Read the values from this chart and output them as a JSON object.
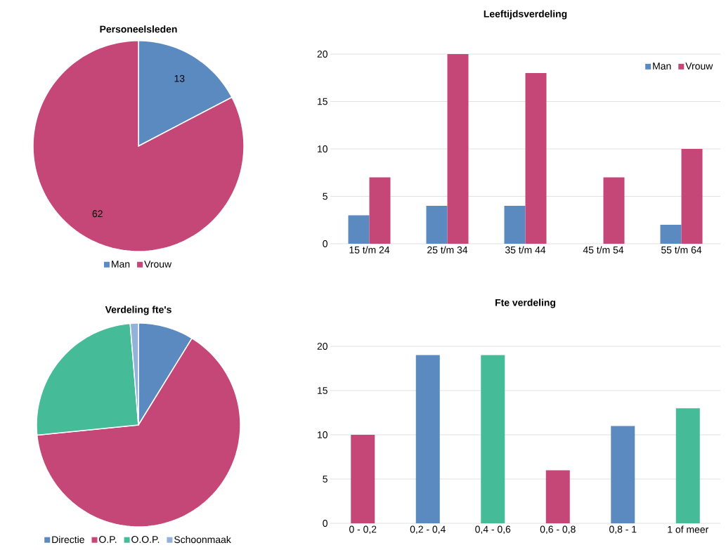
{
  "chart_data": [
    {
      "type": "pie",
      "title": "Personeelsleden",
      "categories": [
        "Man",
        "Vrouw"
      ],
      "values": [
        13,
        62
      ],
      "colors": [
        "#5b8ac1",
        "#c44778"
      ],
      "data_labels": true,
      "legend": "bottom"
    },
    {
      "type": "bar",
      "title": "Leeftijdsverdeling",
      "categories": [
        "15 t/m 24",
        "25 t/m 34",
        "35 t/m 44",
        "45 t/m 54",
        "55 t/m 64"
      ],
      "series": [
        {
          "name": "Man",
          "color": "#5b8ac1",
          "values": [
            3,
            4,
            4,
            0,
            2
          ]
        },
        {
          "name": "Vrouw",
          "color": "#c44778",
          "values": [
            7,
            20,
            18,
            7,
            10
          ]
        }
      ],
      "ylim": [
        0,
        20
      ],
      "yticks": [
        0,
        5,
        10,
        15,
        20
      ],
      "grid": "y",
      "legend": "top right"
    },
    {
      "type": "pie",
      "title": "Verdeling fte's",
      "categories": [
        "Directie",
        "O.P.",
        "O.O.P.",
        "Schoonmaak"
      ],
      "values": [
        8.8,
        64.6,
        25.3,
        1.3
      ],
      "colors": [
        "#5b8ac1",
        "#c44778",
        "#46bb98",
        "#92b2d8"
      ],
      "legend": "bottom"
    },
    {
      "type": "bar",
      "title": "Fte verdeling",
      "categories": [
        "0 - 0,2",
        "0,2 - 0,4",
        "0,4 - 0,6",
        "0,6 - 0,8",
        "0,8 - 1",
        "1 of meer"
      ],
      "values": [
        10,
        19,
        19,
        6,
        11,
        13
      ],
      "colors": [
        "#c44778",
        "#5b8ac1",
        "#46bb98",
        "#c44778",
        "#5b8ac1",
        "#46bb98"
      ],
      "ylim": [
        0,
        20
      ],
      "yticks": [
        0,
        5,
        10,
        15,
        20
      ],
      "grid": "y"
    }
  ]
}
